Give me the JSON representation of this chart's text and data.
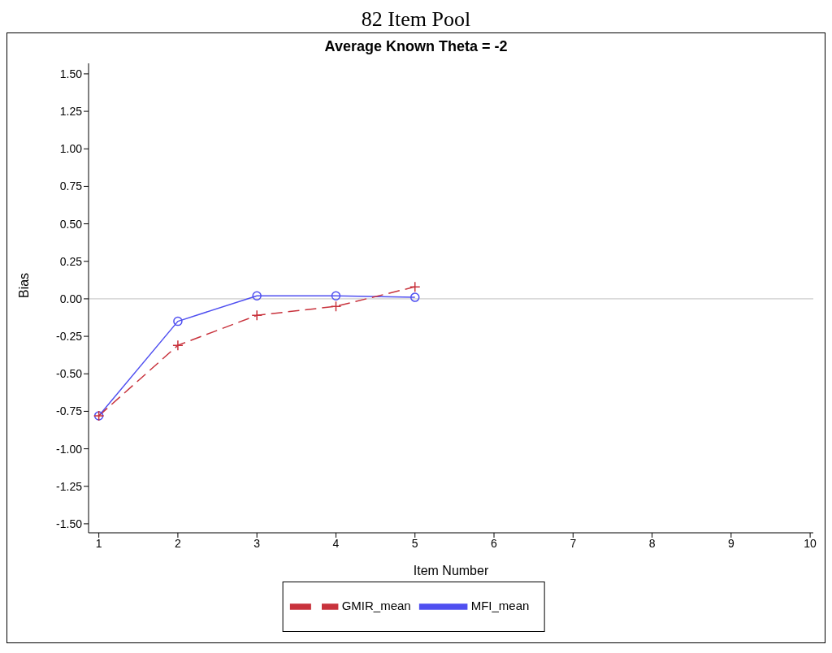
{
  "chart_data": {
    "type": "line",
    "title": "82 Item Pool",
    "subtitle": "Average Known Theta = -2",
    "xlabel": "Item Number",
    "ylabel": "Bias",
    "x": [
      1,
      2,
      3,
      4,
      5
    ],
    "series": [
      {
        "name": "MFI_mean",
        "color": "#4f4ff0",
        "values": [
          -0.78,
          -0.15,
          0.02,
          0.02,
          0.01
        ],
        "marker": "circle",
        "line_style": "solid"
      },
      {
        "name": "GMIR_mean",
        "color": "#c8323c",
        "values": [
          -0.78,
          -0.31,
          -0.11,
          -0.05,
          0.08
        ],
        "marker": "cross",
        "line_style": "dashed"
      }
    ],
    "xlim": [
      0.87,
      10.04
    ],
    "xticks": [
      1,
      2,
      3,
      4,
      5,
      6,
      7,
      8,
      9,
      10
    ],
    "ylim": [
      -1.56,
      1.57
    ],
    "yticks": [
      {
        "value": -1.5,
        "label": "-1.50"
      },
      {
        "value": -1.25,
        "label": "-1.25"
      },
      {
        "value": -1,
        "label": "-1.00"
      },
      {
        "value": -0.75,
        "label": "-0.75"
      },
      {
        "value": -0.5,
        "label": "-0.50"
      },
      {
        "value": -0.25,
        "label": "-0.25"
      },
      {
        "value": 0,
        "label": "0.00"
      },
      {
        "value": 0.25,
        "label": "0.25"
      },
      {
        "value": 0.5,
        "label": "0.50"
      },
      {
        "value": 0.75,
        "label": "0.75"
      },
      {
        "value": 1,
        "label": "1.00"
      },
      {
        "value": 1.25,
        "label": "1.25"
      },
      {
        "value": 1.5,
        "label": "1.50"
      }
    ],
    "ref_lines": [
      {
        "axis": "y",
        "value": 0,
        "color": "#c0c0c0"
      }
    ],
    "grid": false,
    "legend": "bottom"
  }
}
